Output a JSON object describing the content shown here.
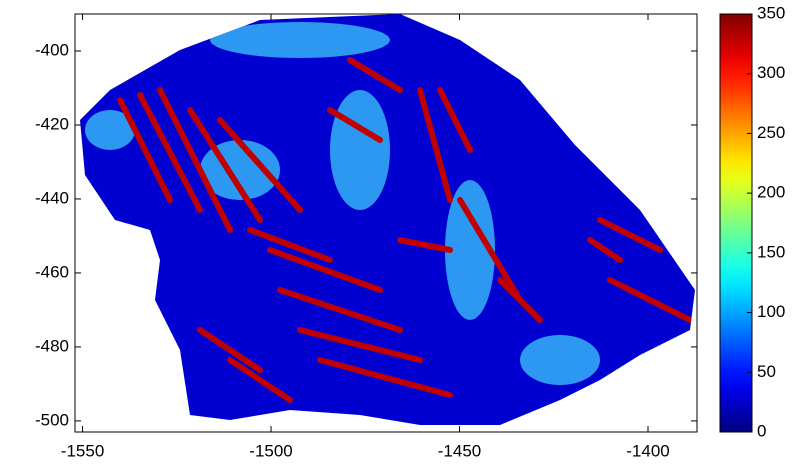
{
  "chart_data": {
    "type": "heatmap",
    "xlim": [
      -1552,
      -1387
    ],
    "xticks": [
      -1550,
      -1500,
      -1450,
      -1400
    ],
    "ylim": [
      -503,
      -390
    ],
    "yticks": [
      -400,
      -420,
      -440,
      -460,
      -480,
      -500
    ],
    "colormap": "jet",
    "clim": [
      0,
      350
    ],
    "cticks": [
      0,
      50,
      100,
      150,
      200,
      250,
      300,
      350
    ]
  }
}
